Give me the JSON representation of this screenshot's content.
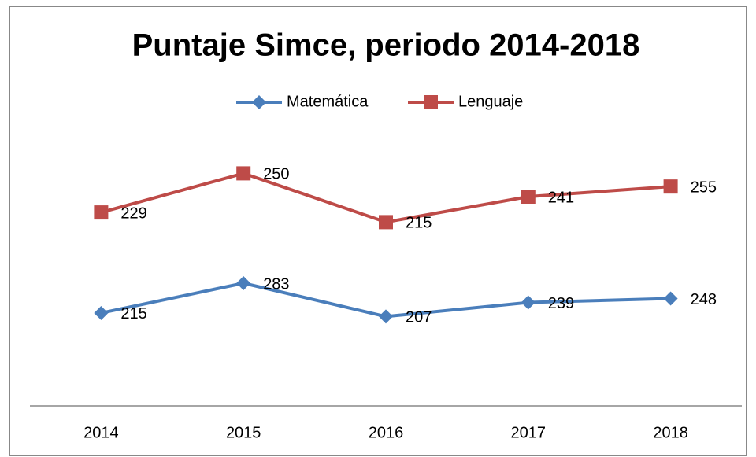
{
  "chart_data": {
    "type": "line",
    "stacked": true,
    "title": "Puntaje Simce, periodo 2014-2018",
    "categories": [
      "2014",
      "2015",
      "2016",
      "2017",
      "2018"
    ],
    "series": [
      {
        "name": "Matemática",
        "color": "#4a7ebb",
        "marker": "diamond",
        "values": [
          215,
          283,
          207,
          239,
          248
        ]
      },
      {
        "name": "Lenguaje",
        "color": "#be4b48",
        "marker": "square",
        "values": [
          229,
          250,
          215,
          241,
          255
        ]
      }
    ],
    "ylim": [
      0,
      600
    ],
    "legend": "top"
  }
}
